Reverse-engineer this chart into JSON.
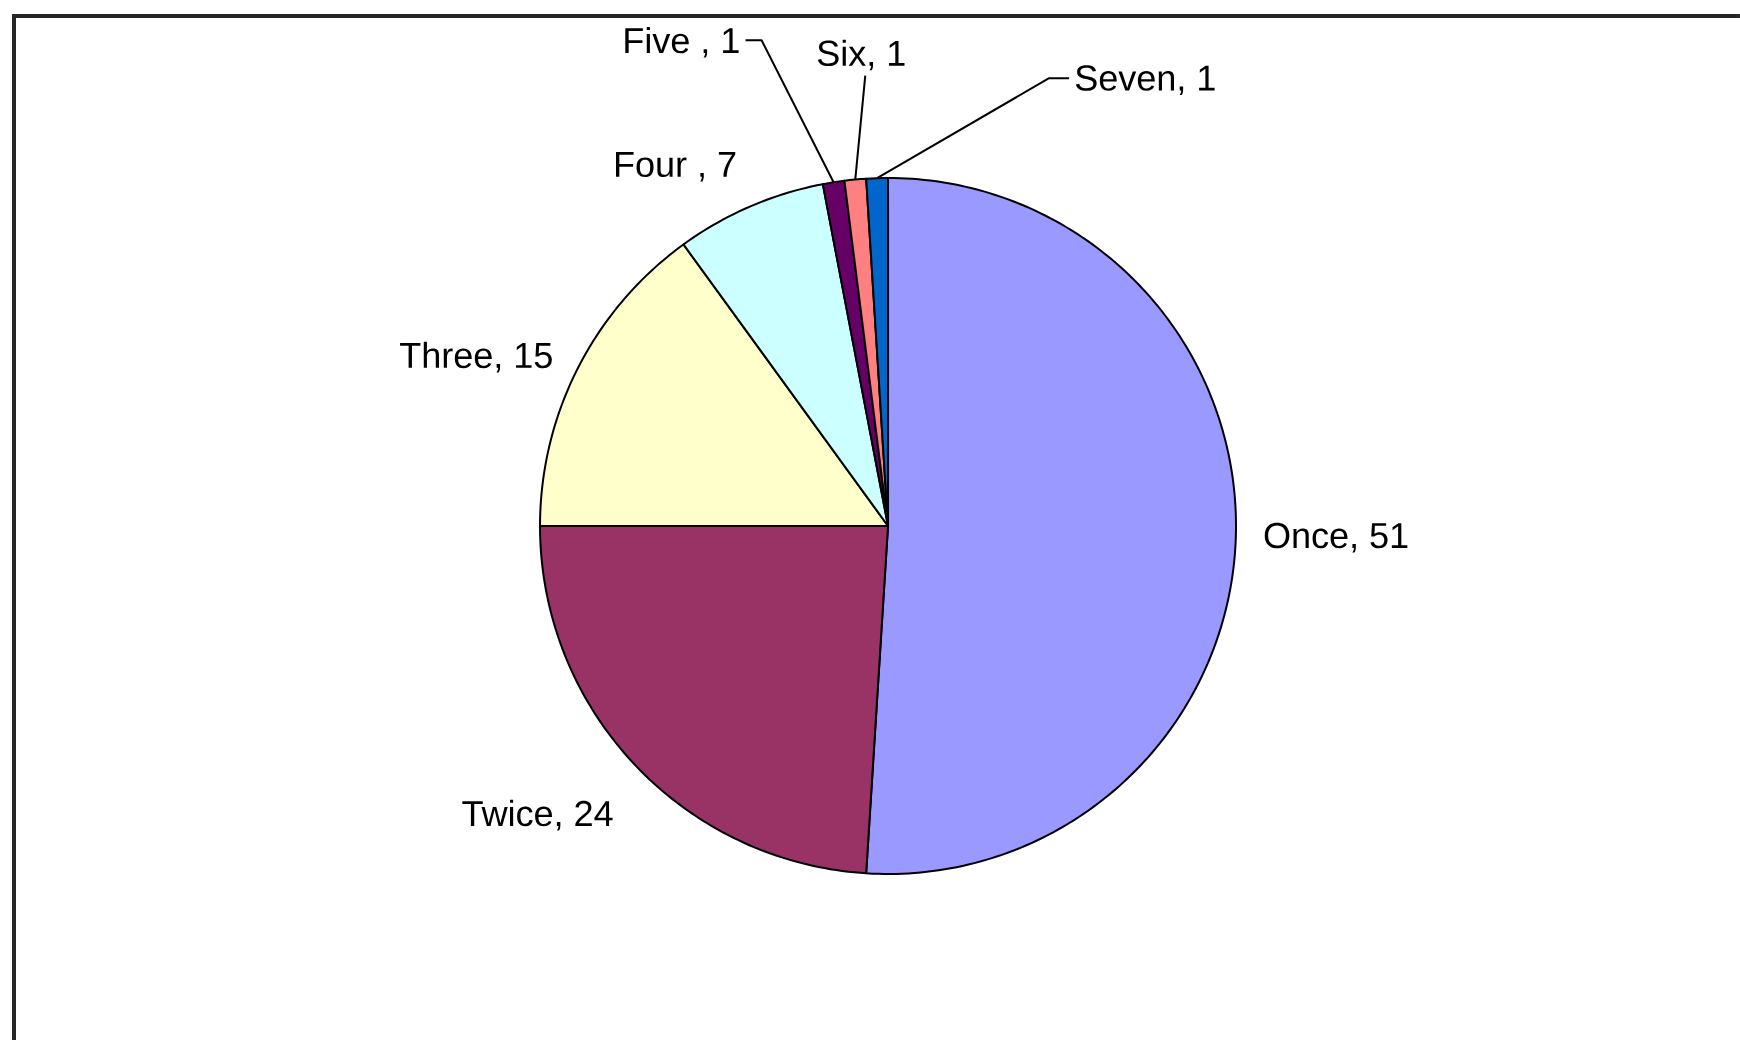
{
  "chart_data": {
    "type": "pie",
    "categories": [
      null,
      null,
      null,
      null,
      null,
      null,
      null
    ],
    "values": [
      51,
      24,
      15,
      7,
      1,
      1,
      1
    ],
    "value_labels": [
      "Once, 51",
      "Twice, 24",
      "Three, 15",
      "Four , 7",
      "Five , 1",
      "Six, 1",
      "Seven, 1"
    ],
    "colors": [
      "#9999ff",
      "#993366",
      "#ffffcc",
      "#ccffff",
      "#660066",
      "#ff8080",
      "#0066cc"
    ]
  }
}
